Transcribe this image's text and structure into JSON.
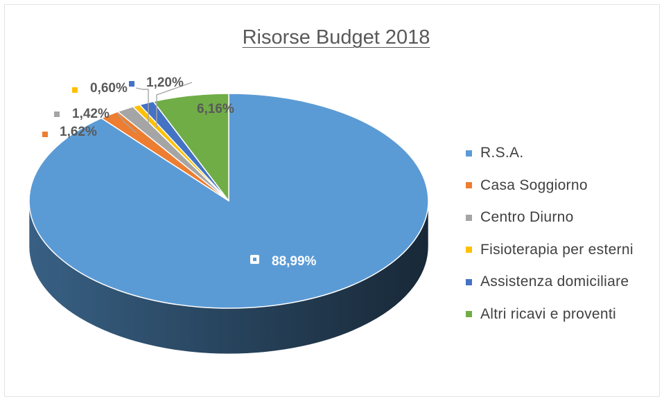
{
  "chart_data": {
    "type": "pie",
    "title": "Risorse Budget 2018",
    "slices": [
      {
        "name": "R.S.A.",
        "value": 88.99,
        "label": "88,99%",
        "color": "#5b9bd5"
      },
      {
        "name": "Casa Soggiorno",
        "value": 1.62,
        "label": "1,62%",
        "color": "#ed7d31"
      },
      {
        "name": "Centro Diurno",
        "value": 1.42,
        "label": "1,42%",
        "color": "#a5a5a5"
      },
      {
        "name": "Fisioterapia per esterni",
        "value": 0.6,
        "label": "0,60%",
        "color": "#ffc000"
      },
      {
        "name": "Assistenza domiciliare",
        "value": 1.2,
        "label": "1,20%",
        "color": "#4472c4"
      },
      {
        "name": "Altri ricavi e proventi",
        "value": 6.16,
        "label": "6,16%",
        "color": "#70ad47"
      }
    ],
    "legend_position": "right",
    "style": "3d"
  }
}
